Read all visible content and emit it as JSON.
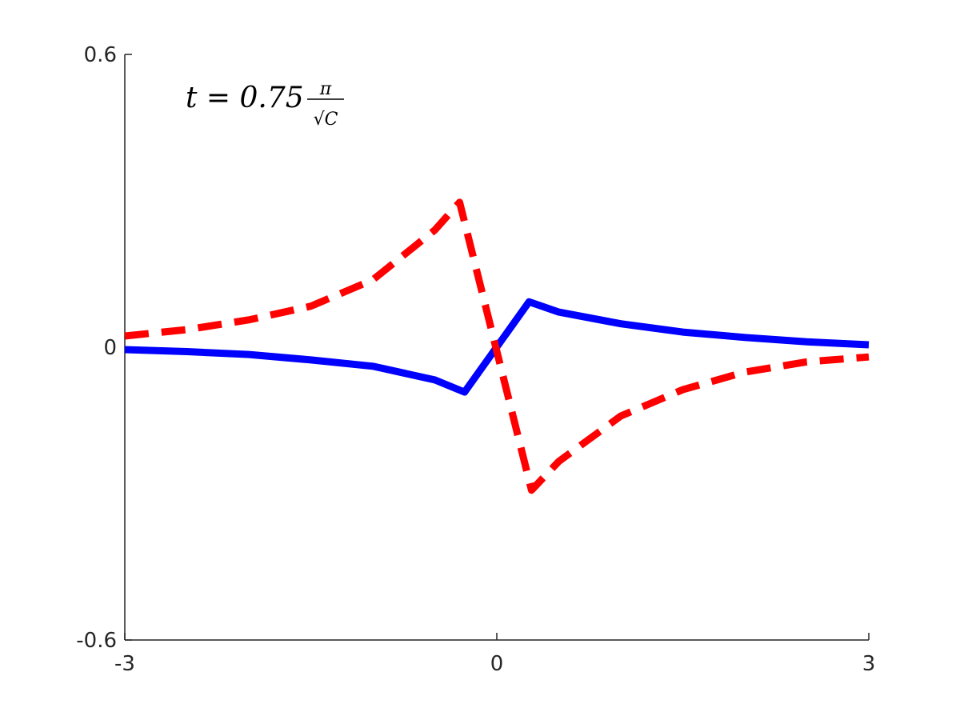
{
  "chart_data": {
    "type": "line",
    "annotation": {
      "text": "t = 0.75",
      "numerator": "π",
      "denominator": "√C"
    },
    "series": [
      {
        "color": "#0000ff",
        "style": "solid",
        "x": [
          -3,
          -2.5,
          -2,
          -1.5,
          -1,
          -0.5,
          -0.26,
          0.26,
          0.5,
          1,
          1.5,
          2,
          2.5,
          3
        ],
        "values": [
          -0.005,
          -0.009,
          -0.015,
          -0.026,
          -0.039,
          -0.067,
          -0.092,
          0.093,
          0.072,
          0.048,
          0.031,
          0.02,
          0.011,
          0.005
        ]
      },
      {
        "color": "#ff0000",
        "style": "dashed",
        "x": [
          -3,
          -2.5,
          -2,
          -1.5,
          -1,
          -0.5,
          -0.3,
          0.28,
          0.5,
          1,
          1.5,
          2,
          2.5,
          3
        ],
        "values": [
          0.023,
          0.036,
          0.056,
          0.084,
          0.138,
          0.24,
          0.297,
          -0.293,
          -0.234,
          -0.141,
          -0.087,
          -0.051,
          -0.03,
          -0.02
        ]
      }
    ],
    "xlim": [
      -3,
      3
    ],
    "xticks": [
      -3,
      0,
      3
    ],
    "ylim": [
      -0.6,
      0.6
    ],
    "yticks": [
      -0.6,
      0,
      0.6
    ]
  }
}
